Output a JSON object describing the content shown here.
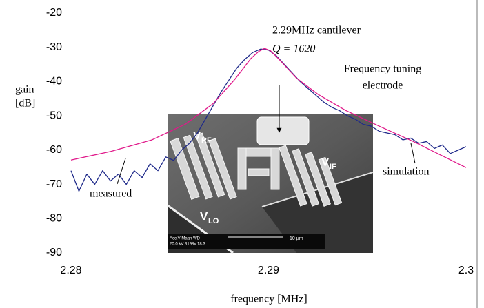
{
  "chart_data": {
    "type": "line",
    "ylabel": [
      "gain",
      "[dB]"
    ],
    "xlabel": "frequency [MHz]",
    "xlim": [
      2.28,
      2.3
    ],
    "xticks": [
      2.28,
      2.29,
      2.3
    ],
    "ylim": [
      -90,
      -20
    ],
    "yticks": [
      -20,
      -30,
      -40,
      -50,
      -60,
      -70,
      -80,
      -90
    ],
    "grid": false,
    "series": [
      {
        "name": "measured",
        "color": "#1f2a8a",
        "x": [
          2.28,
          2.2804,
          2.2808,
          2.2812,
          2.2816,
          2.282,
          2.2824,
          2.2828,
          2.2832,
          2.2836,
          2.284,
          2.2844,
          2.2848,
          2.2852,
          2.2856,
          2.286,
          2.2864,
          2.2868,
          2.2872,
          2.2876,
          2.288,
          2.2884,
          2.2888,
          2.2892,
          2.2896,
          2.29,
          2.2904,
          2.2908,
          2.2912,
          2.2916,
          2.292,
          2.2924,
          2.2928,
          2.2932,
          2.2936,
          2.294,
          2.2944,
          2.2948,
          2.2952,
          2.2956,
          2.296,
          2.2964,
          2.2968,
          2.2972,
          2.2976,
          2.298,
          2.2984,
          2.2988,
          2.2992,
          2.2996,
          2.3
        ],
        "values": [
          -66,
          -72,
          -67,
          -70,
          -66,
          -69,
          -67,
          -70,
          -66,
          -68,
          -64,
          -66,
          -62,
          -63,
          -60,
          -58,
          -55,
          -51,
          -47,
          -43,
          -39.5,
          -36,
          -33.5,
          -31.5,
          -30.5,
          -30.8,
          -32.5,
          -35,
          -37.5,
          -40,
          -42,
          -44,
          -46,
          -47.5,
          -48.5,
          -50,
          -51,
          -52.5,
          -53,
          -54.5,
          -55,
          -55.5,
          -57,
          -56.5,
          -58,
          -57.5,
          -59.5,
          -58.5,
          -61,
          -60,
          -59
        ]
      },
      {
        "name": "simulation",
        "color": "#e0198a",
        "x": [
          2.28,
          2.282,
          2.2841,
          2.2858,
          2.2872,
          2.2883,
          2.2891,
          2.2895,
          2.2898,
          2.2901,
          2.2905,
          2.2914,
          2.2925,
          2.2939,
          2.2956,
          2.2973,
          2.2987,
          2.3
        ],
        "values": [
          -62.9,
          -60.4,
          -57,
          -52.4,
          -46.4,
          -39.3,
          -33.3,
          -31.2,
          -30.3,
          -31,
          -33.3,
          -38.9,
          -43.7,
          -48.4,
          -53,
          -57.4,
          -61.4,
          -65.1
        ]
      }
    ],
    "annotations": [
      "2.29MHz cantilever",
      "Q = 1620",
      "Frequency tuning",
      "electrode"
    ]
  },
  "inset": {
    "labels": [
      {
        "main": "V",
        "sub": "RF"
      },
      {
        "main": "V",
        "sub": "IF"
      },
      {
        "main": "V",
        "sub": "LO"
      }
    ],
    "scale_info": [
      "Acc.V  Magn   WD",
      "20.0 kV 3198x  18.3"
    ],
    "scale_bar": "10 µm"
  }
}
